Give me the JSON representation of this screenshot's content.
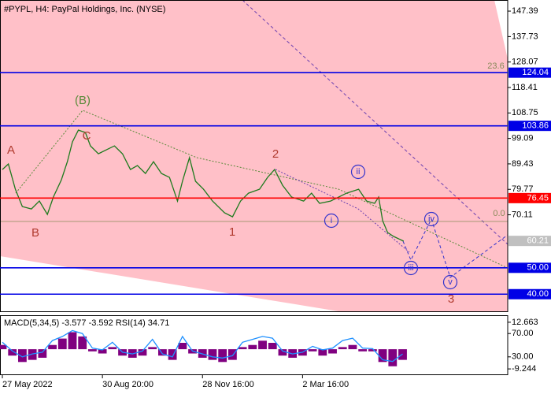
{
  "chart_data": [
    {
      "type": "line",
      "title": "#PYPL, H4:  PayPal Holdings, Inc. (NYSE)",
      "x": [
        0,
        6,
        13,
        20,
        29,
        37,
        45,
        51,
        59,
        65,
        70,
        76,
        83,
        88,
        96,
        104,
        112,
        120,
        128,
        135,
        143,
        151,
        159,
        167,
        175,
        180,
        187,
        193,
        201,
        210,
        222,
        230,
        238,
        246,
        257,
        265,
        272,
        280,
        289,
        301,
        309,
        317,
        328,
        344,
        356,
        364,
        372,
        376,
        380,
        385,
        391,
        401
      ],
      "series": [
        {
          "color": "#1d7a1d",
          "values": [
            87.3,
            89.39,
            79.82,
            73.25,
            72.35,
            75.34,
            70.26,
            76.84,
            83.41,
            90.29,
            97.76,
            102.25,
            101.35,
            96.27,
            93.28,
            94.77,
            96.27,
            93.28,
            87.3,
            88.8,
            85.8,
            90.29,
            85.8,
            84.31,
            75.34,
            82.82,
            91.78,
            82.82,
            79.82,
            75.34,
            70.86,
            69.36,
            75.34,
            78.33,
            79.82,
            84.31,
            87.3,
            81.32,
            76.84,
            75.34,
            78.33,
            74.45,
            75.34,
            78.33,
            79.82,
            75.34,
            74.45,
            76.84,
            67.87,
            63.39,
            61.89,
            60.1
          ]
        }
      ],
      "xlim": [
        0,
        505
      ],
      "ylim": [
        33.5,
        151.6
      ],
      "yticks": [
        147.39,
        137.73,
        128.07,
        118.41,
        108.75,
        99.09,
        89.43,
        79.77,
        70.11
      ],
      "levels": [
        {
          "value": 124.04,
          "color": "#0000e6"
        },
        {
          "value": 103.86,
          "color": "#0000e6"
        },
        {
          "value": 76.45,
          "color": "#ff0000"
        },
        {
          "value": 60.21,
          "color": "#c0c0c0",
          "line": false
        },
        {
          "value": 50,
          "label": "50.00",
          "color": "#0000e6"
        },
        {
          "value": 40,
          "label": "40.00",
          "color": "#0000e6"
        }
      ],
      "annotations": [
        {
          "text": "A",
          "color": "#b03a2e"
        },
        {
          "text": "B",
          "color": "#b03a2e"
        },
        {
          "text": "C",
          "color": "#b03a2e"
        },
        {
          "text": "(B)",
          "color": "#5a8a3a"
        },
        {
          "text": "1",
          "color": "#b03a2e"
        },
        {
          "text": "2",
          "color": "#b03a2e"
        },
        {
          "text": "3",
          "color": "#b03a2e"
        },
        {
          "text": "i",
          "color": "#3333cc"
        },
        {
          "text": "ii",
          "color": "#3333cc"
        },
        {
          "text": "iii",
          "color": "#3333cc"
        },
        {
          "text": "iv",
          "color": "#3333cc"
        },
        {
          "text": "v",
          "color": "#3333cc"
        },
        {
          "text": "23.6",
          "color": "#8a8a5a"
        },
        {
          "text": "0.0",
          "color": "#8a8a5a"
        }
      ]
    },
    {
      "type": "bar",
      "title": "MACD(5,34,5) -3.577 -3.592 RSI(14) 34.71",
      "x": [
        0,
        10,
        20,
        30,
        40,
        50,
        60,
        70,
        80,
        90,
        100,
        110,
        120,
        130,
        140,
        150,
        160,
        170,
        180,
        190,
        200,
        210,
        220,
        230,
        240,
        250,
        260,
        270,
        280,
        290,
        300,
        310,
        320,
        330,
        340,
        350,
        360,
        370,
        380,
        390,
        400
      ],
      "series": [
        {
          "color": "#800080",
          "values": [
            2,
            -3,
            -6,
            -5,
            -4,
            2,
            5,
            8,
            6,
            -1,
            -2,
            1,
            -3,
            -4,
            -3,
            1,
            -3,
            -5,
            3,
            -2,
            -4,
            -5,
            -6,
            -5,
            1,
            2,
            4,
            3,
            -3,
            -4,
            -3,
            -1,
            -3,
            -2,
            1,
            2,
            -1,
            -1,
            -6,
            -8,
            -5
          ]
        },
        {
          "color": "#1e90ff",
          "type": "line",
          "axis": "y2",
          "values": [
            55,
            40,
            30,
            35,
            38,
            58,
            65,
            75,
            70,
            45,
            42,
            55,
            38,
            35,
            40,
            60,
            35,
            30,
            65,
            40,
            35,
            30,
            28,
            32,
            55,
            60,
            65,
            62,
            40,
            35,
            38,
            48,
            42,
            45,
            58,
            62,
            45,
            44,
            25,
            22,
            35
          ]
        }
      ],
      "xlim": [
        0,
        505
      ],
      "xticks": [
        {
          "value": 0,
          "label": "27 May 2022"
        },
        {
          "value": 100,
          "label": "30 Aug 20:00"
        },
        {
          "value": 200,
          "label": "28 Nov 16:00"
        },
        {
          "value": 300,
          "label": "2 Mar 16:00"
        }
      ],
      "ylim": [
        -11.8,
        15.58
      ],
      "yticks": [
        12.663,
        -9.244
      ],
      "y2lim": [
        0,
        100
      ],
      "y2ticks": [
        {
          "value": 70,
          "label": "70.00"
        },
        {
          "value": 30,
          "label": "30.00"
        }
      ]
    }
  ]
}
